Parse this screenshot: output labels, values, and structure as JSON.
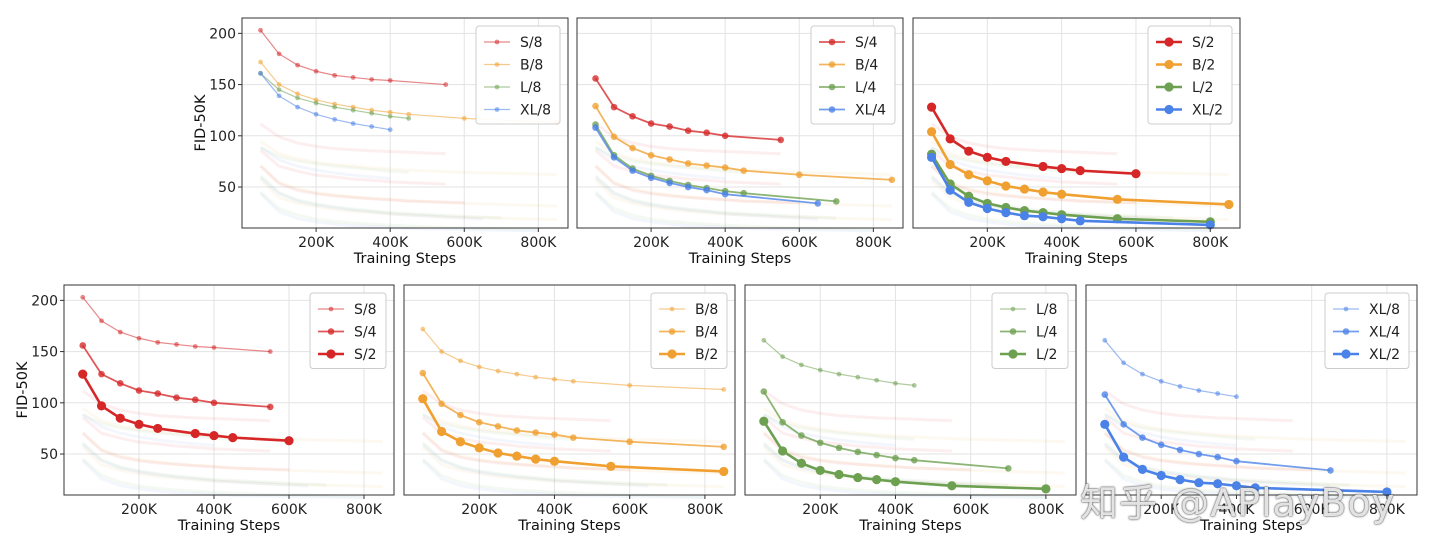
{
  "colors": {
    "S": "#d62728",
    "B": "#f0a030",
    "L": "#6da050",
    "XL": "#4a82e8",
    "grid": "#e3e3e3",
    "frame": "#333333"
  },
  "watermark": "知乎 @APlayBoy",
  "chart_data": [
    {
      "type": "line",
      "xlabel": "Training Steps",
      "ylabel": "FID-50K",
      "xticks": [
        "200K",
        "400K",
        "600K",
        "800K"
      ],
      "yticks": [
        "50",
        "100",
        "150",
        "200"
      ],
      "xlim": [
        0,
        880
      ],
      "ylim": [
        10,
        215
      ],
      "legend": "top-right",
      "series": [
        {
          "name": "S/8",
          "family": "S",
          "patch": 8,
          "x": [
            50,
            100,
            150,
            200,
            250,
            300,
            350,
            400,
            550
          ],
          "y": [
            203,
            180,
            169,
            163,
            159,
            157,
            155,
            154,
            150
          ]
        },
        {
          "name": "B/8",
          "family": "B",
          "patch": 8,
          "x": [
            50,
            100,
            150,
            200,
            250,
            300,
            350,
            400,
            450,
            600,
            850
          ],
          "y": [
            172,
            150,
            141,
            135,
            131,
            128,
            125,
            123,
            121,
            117,
            113
          ]
        },
        {
          "name": "L/8",
          "family": "L",
          "patch": 8,
          "x": [
            50,
            100,
            150,
            200,
            250,
            300,
            350,
            400,
            450
          ],
          "y": [
            161,
            145,
            137,
            132,
            128,
            125,
            122,
            119,
            117
          ]
        },
        {
          "name": "XL/8",
          "family": "XL",
          "patch": 8,
          "x": [
            50,
            100,
            150,
            200,
            250,
            300,
            350,
            400
          ],
          "y": [
            161,
            139,
            128,
            121,
            116,
            112,
            109,
            106
          ]
        }
      ]
    },
    {
      "type": "line",
      "xlabel": "Training Steps",
      "ylabel": "",
      "xticks": [
        "200K",
        "400K",
        "600K",
        "800K"
      ],
      "yticks": [],
      "xlim": [
        0,
        880
      ],
      "ylim": [
        10,
        215
      ],
      "legend": "top-right",
      "series": [
        {
          "name": "S/4",
          "family": "S",
          "patch": 4,
          "x": [
            50,
            100,
            150,
            200,
            250,
            300,
            350,
            400,
            550
          ],
          "y": [
            156,
            128,
            119,
            112,
            109,
            105,
            103,
            100,
            96
          ]
        },
        {
          "name": "B/4",
          "family": "B",
          "patch": 4,
          "x": [
            50,
            100,
            150,
            200,
            250,
            300,
            350,
            400,
            450,
            600,
            850
          ],
          "y": [
            129,
            99,
            88,
            81,
            77,
            73,
            71,
            69,
            66,
            62,
            57
          ]
        },
        {
          "name": "L/4",
          "family": "L",
          "patch": 4,
          "x": [
            50,
            100,
            150,
            200,
            250,
            300,
            350,
            400,
            450,
            700
          ],
          "y": [
            111,
            81,
            68,
            61,
            56,
            52,
            49,
            46,
            44,
            36
          ]
        },
        {
          "name": "XL/4",
          "family": "XL",
          "patch": 4,
          "x": [
            50,
            100,
            150,
            200,
            250,
            300,
            350,
            400,
            650
          ],
          "y": [
            108,
            79,
            66,
            59,
            54,
            50,
            47,
            43,
            34
          ]
        }
      ]
    },
    {
      "type": "line",
      "xlabel": "Training Steps",
      "ylabel": "",
      "xticks": [
        "200K",
        "400K",
        "600K",
        "800K"
      ],
      "yticks": [],
      "xlim": [
        0,
        880
      ],
      "ylim": [
        10,
        215
      ],
      "legend": "top-right",
      "series": [
        {
          "name": "S/2",
          "family": "S",
          "patch": 2,
          "x": [
            50,
            100,
            150,
            200,
            250,
            350,
            400,
            450,
            600
          ],
          "y": [
            128,
            97,
            85,
            79,
            75,
            70,
            68,
            66,
            63
          ]
        },
        {
          "name": "B/2",
          "family": "B",
          "patch": 2,
          "x": [
            50,
            100,
            150,
            200,
            250,
            300,
            350,
            400,
            550,
            850
          ],
          "y": [
            104,
            72,
            62,
            56,
            51,
            48,
            45,
            43,
            38,
            33
          ]
        },
        {
          "name": "L/2",
          "family": "L",
          "patch": 2,
          "x": [
            50,
            100,
            150,
            200,
            250,
            300,
            350,
            400,
            550,
            800
          ],
          "y": [
            82,
            53,
            41,
            34,
            30,
            27,
            25,
            23,
            19,
            16
          ]
        },
        {
          "name": "XL/2",
          "family": "XL",
          "patch": 2,
          "x": [
            50,
            100,
            150,
            200,
            250,
            300,
            350,
            400,
            450,
            800
          ],
          "y": [
            79,
            47,
            35,
            29,
            25,
            22,
            21,
            19,
            17,
            13
          ]
        }
      ]
    },
    {
      "type": "line",
      "xlabel": "Training Steps",
      "ylabel": "FID-50K",
      "xticks": [
        "200K",
        "400K",
        "600K",
        "800K"
      ],
      "yticks": [
        "50",
        "100",
        "150",
        "200"
      ],
      "xlim": [
        0,
        880
      ],
      "ylim": [
        10,
        215
      ],
      "legend": "top-right",
      "series": [
        {
          "name": "S/8",
          "family": "S",
          "patch": 8,
          "x": [
            50,
            100,
            150,
            200,
            250,
            300,
            350,
            400,
            550
          ],
          "y": [
            203,
            180,
            169,
            163,
            159,
            157,
            155,
            154,
            150
          ]
        },
        {
          "name": "S/4",
          "family": "S",
          "patch": 4,
          "x": [
            50,
            100,
            150,
            200,
            250,
            300,
            350,
            400,
            550
          ],
          "y": [
            156,
            128,
            119,
            112,
            109,
            105,
            103,
            100,
            96
          ]
        },
        {
          "name": "S/2",
          "family": "S",
          "patch": 2,
          "x": [
            50,
            100,
            150,
            200,
            250,
            350,
            400,
            450,
            600
          ],
          "y": [
            128,
            97,
            85,
            79,
            75,
            70,
            68,
            66,
            63
          ]
        }
      ]
    },
    {
      "type": "line",
      "xlabel": "Training Steps",
      "ylabel": "",
      "xticks": [
        "200K",
        "400K",
        "600K",
        "800K"
      ],
      "yticks": [],
      "xlim": [
        0,
        880
      ],
      "ylim": [
        10,
        215
      ],
      "legend": "top-right",
      "series": [
        {
          "name": "B/8",
          "family": "B",
          "patch": 8,
          "x": [
            50,
            100,
            150,
            200,
            250,
            300,
            350,
            400,
            450,
            600,
            850
          ],
          "y": [
            172,
            150,
            141,
            135,
            131,
            128,
            125,
            123,
            121,
            117,
            113
          ]
        },
        {
          "name": "B/4",
          "family": "B",
          "patch": 4,
          "x": [
            50,
            100,
            150,
            200,
            250,
            300,
            350,
            400,
            450,
            600,
            850
          ],
          "y": [
            129,
            99,
            88,
            81,
            77,
            73,
            71,
            69,
            66,
            62,
            57
          ]
        },
        {
          "name": "B/2",
          "family": "B",
          "patch": 2,
          "x": [
            50,
            100,
            150,
            200,
            250,
            300,
            350,
            400,
            550,
            850
          ],
          "y": [
            104,
            72,
            62,
            56,
            51,
            48,
            45,
            43,
            38,
            33
          ]
        }
      ]
    },
    {
      "type": "line",
      "xlabel": "Training Steps",
      "ylabel": "",
      "xticks": [
        "200K",
        "400K",
        "600K",
        "800K"
      ],
      "yticks": [],
      "xlim": [
        0,
        880
      ],
      "ylim": [
        10,
        215
      ],
      "legend": "top-right",
      "series": [
        {
          "name": "L/8",
          "family": "L",
          "patch": 8,
          "x": [
            50,
            100,
            150,
            200,
            250,
            300,
            350,
            400,
            450
          ],
          "y": [
            161,
            145,
            137,
            132,
            128,
            125,
            122,
            119,
            117
          ]
        },
        {
          "name": "L/4",
          "family": "L",
          "patch": 4,
          "x": [
            50,
            100,
            150,
            200,
            250,
            300,
            350,
            400,
            450,
            700
          ],
          "y": [
            111,
            81,
            68,
            61,
            56,
            52,
            49,
            46,
            44,
            36
          ]
        },
        {
          "name": "L/2",
          "family": "L",
          "patch": 2,
          "x": [
            50,
            100,
            150,
            200,
            250,
            300,
            350,
            400,
            550,
            800
          ],
          "y": [
            82,
            53,
            41,
            34,
            30,
            27,
            25,
            23,
            19,
            16
          ]
        }
      ]
    },
    {
      "type": "line",
      "xlabel": "Training Steps",
      "ylabel": "",
      "xticks": [
        "200K",
        "400K",
        "600K",
        "800K"
      ],
      "yticks": [],
      "xlim": [
        0,
        880
      ],
      "ylim": [
        10,
        215
      ],
      "legend": "top-right",
      "series": [
        {
          "name": "XL/8",
          "family": "XL",
          "patch": 8,
          "x": [
            50,
            100,
            150,
            200,
            250,
            300,
            350,
            400
          ],
          "y": [
            161,
            139,
            128,
            121,
            116,
            112,
            109,
            106
          ]
        },
        {
          "name": "XL/4",
          "family": "XL",
          "patch": 4,
          "x": [
            50,
            100,
            150,
            200,
            250,
            300,
            350,
            400,
            650
          ],
          "y": [
            108,
            79,
            66,
            59,
            54,
            50,
            47,
            43,
            34
          ]
        },
        {
          "name": "XL/2",
          "family": "XL",
          "patch": 2,
          "x": [
            50,
            100,
            150,
            200,
            250,
            300,
            350,
            400,
            450,
            800
          ],
          "y": [
            79,
            47,
            35,
            29,
            25,
            22,
            21,
            19,
            17,
            13
          ]
        }
      ]
    }
  ]
}
